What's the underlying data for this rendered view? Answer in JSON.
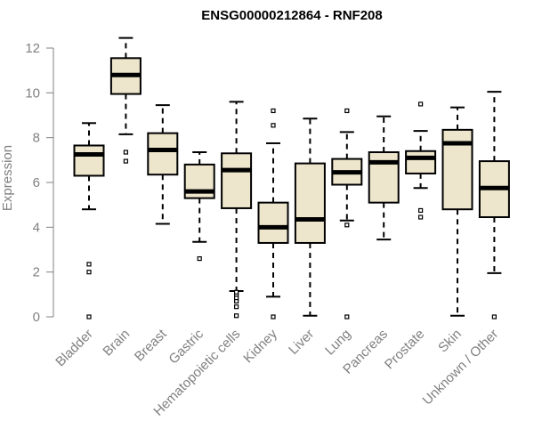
{
  "chart_data": {
    "type": "box",
    "title": "ENSG00000212864 - RNF208",
    "xlabel": "",
    "ylabel": "Expression",
    "ylim": [
      0,
      12.5
    ],
    "yticks": [
      0,
      2,
      4,
      6,
      8,
      10,
      12
    ],
    "grid": false,
    "box_fill": "#ede6cc",
    "categories": [
      "Bladder",
      "Brain",
      "Breast",
      "Gastric",
      "Hematopoietic cells",
      "Kidney",
      "Liver",
      "Lung",
      "Pancreas",
      "Prostate",
      "Skin",
      "Unknown / Other"
    ],
    "boxes": [
      {
        "whisker_low": 4.8,
        "q1": 6.3,
        "median": 7.25,
        "q3": 7.65,
        "whisker_high": 8.65,
        "outliers": [
          0,
          2.0,
          2.35
        ]
      },
      {
        "whisker_low": 8.15,
        "q1": 9.95,
        "median": 10.8,
        "q3": 11.55,
        "whisker_high": 12.45,
        "outliers": [
          6.95,
          7.35
        ]
      },
      {
        "whisker_low": 4.15,
        "q1": 6.35,
        "median": 7.45,
        "q3": 8.2,
        "whisker_high": 9.45,
        "outliers": []
      },
      {
        "whisker_low": 3.35,
        "q1": 5.3,
        "median": 5.6,
        "q3": 6.8,
        "whisker_high": 7.35,
        "outliers": [
          2.6
        ]
      },
      {
        "whisker_low": 1.15,
        "q1": 4.85,
        "median": 6.55,
        "q3": 7.3,
        "whisker_high": 9.6,
        "outliers": [
          0.05,
          0.45,
          0.7,
          0.85,
          1.0,
          1.1
        ]
      },
      {
        "whisker_low": 0.9,
        "q1": 3.3,
        "median": 4.0,
        "q3": 5.1,
        "whisker_high": 7.75,
        "outliers": [
          0,
          8.55,
          9.2
        ]
      },
      {
        "whisker_low": 0.05,
        "q1": 3.3,
        "median": 4.35,
        "q3": 6.85,
        "whisker_high": 8.85,
        "outliers": []
      },
      {
        "whisker_low": 4.3,
        "q1": 5.9,
        "median": 6.45,
        "q3": 7.05,
        "whisker_high": 8.25,
        "outliers": [
          0,
          4.1,
          9.2
        ]
      },
      {
        "whisker_low": 3.45,
        "q1": 5.1,
        "median": 6.9,
        "q3": 7.35,
        "whisker_high": 8.95,
        "outliers": []
      },
      {
        "whisker_low": 5.75,
        "q1": 6.4,
        "median": 7.1,
        "q3": 7.4,
        "whisker_high": 8.3,
        "outliers": [
          4.45,
          4.75,
          9.5
        ]
      },
      {
        "whisker_low": 0.05,
        "q1": 4.8,
        "median": 7.75,
        "q3": 8.35,
        "whisker_high": 9.35,
        "outliers": []
      },
      {
        "whisker_low": 1.95,
        "q1": 4.45,
        "median": 5.75,
        "q3": 6.95,
        "whisker_high": 10.05,
        "outliers": [
          0
        ]
      }
    ]
  }
}
